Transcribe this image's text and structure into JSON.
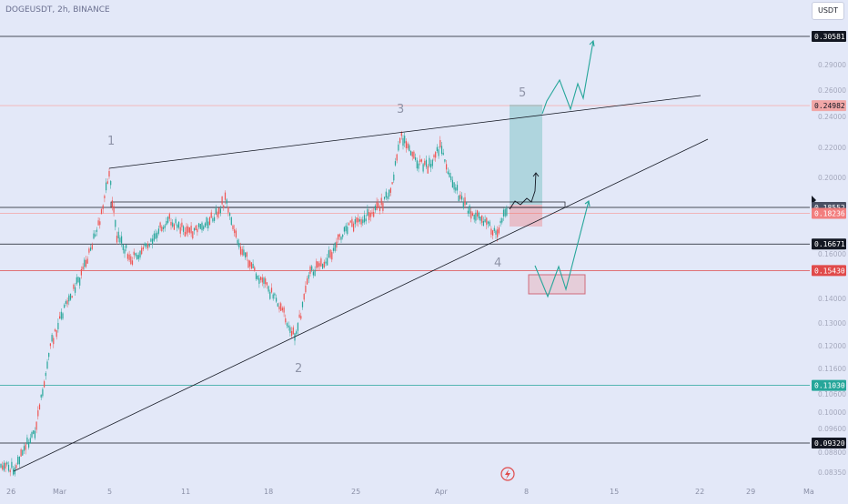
{
  "header": {
    "symbol": "DOGEUSDT, 2h, BINANCE",
    "currency_button": "USDT"
  },
  "price_tags": [
    {
      "label": "0.30581",
      "price": 0.30581,
      "bg": "#131722",
      "fg": "#ffffff",
      "line": "#131722"
    },
    {
      "label": "0.24982",
      "price": 0.24982,
      "bg": "#f1a7a7",
      "fg": "#131722",
      "line": "#f5b3b3"
    },
    {
      "label": "0.18552",
      "price": 0.18552,
      "bg": "#4a4f63",
      "fg": "#ffffff",
      "line": "#131722"
    },
    {
      "label": "0.18236",
      "price": 0.18236,
      "bg": "#f27e7e",
      "fg": "#ffffff",
      "line": "#f5a3a3"
    },
    {
      "label": "0.16671",
      "price": 0.16671,
      "bg": "#131722",
      "fg": "#ffffff",
      "line": "#131722"
    },
    {
      "label": "0.15430",
      "price": 0.1543,
      "bg": "#e04a4a",
      "fg": "#ffffff",
      "line": "#e04a4a"
    },
    {
      "label": "0.11030",
      "price": 0.1103,
      "bg": "#26a69a",
      "fg": "#ffffff",
      "line": "#26a69a"
    },
    {
      "label": "0.09320",
      "price": 0.0932,
      "bg": "#131722",
      "fg": "#ffffff",
      "line": "#131722"
    }
  ],
  "axis": {
    "y_ticks": [
      "0.29000",
      "0.26000",
      "0.24000",
      "0.22000",
      "0.20000",
      "0.16000",
      "0.14000",
      "0.13000",
      "0.12000",
      "0.11600",
      "0.10600",
      "0.10000",
      "0.09600",
      "0.08800",
      "0.08350"
    ],
    "x_ticks": [
      "26",
      "Mar",
      "5",
      "11",
      "18",
      "25",
      "Apr",
      "8",
      "15",
      "22",
      "29",
      "Ma"
    ]
  },
  "wave_labels": [
    "1",
    "2",
    "3",
    "4",
    "5"
  ],
  "colors": {
    "bull": "#26a69a",
    "bear": "#ef5350",
    "trend": "#131722",
    "projection": "#26a69a"
  }
}
